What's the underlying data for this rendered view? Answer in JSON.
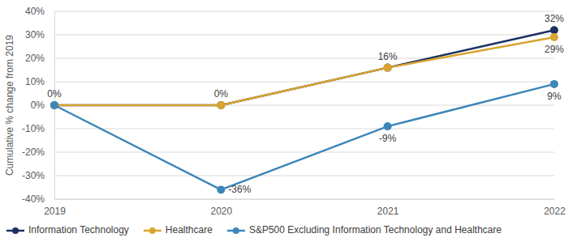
{
  "chart_data": {
    "type": "line",
    "ylabel": "Cumulative % change from 2019",
    "categories": [
      "2019",
      "2020",
      "2021",
      "2022"
    ],
    "series": [
      {
        "name": "Information Technology",
        "color": "#1c3160",
        "values": [
          0,
          0,
          16,
          32
        ],
        "value_labels": [
          null,
          null,
          null,
          "32%"
        ]
      },
      {
        "name": "Healthcare",
        "color": "#d9a530",
        "values": [
          0,
          0,
          16,
          29
        ],
        "value_labels": [
          "0%",
          "0%",
          "16%",
          "29%"
        ]
      },
      {
        "name": "S&P500 Excluding Information Technology and Healthcare",
        "color": "#3d86b9",
        "values": [
          0,
          -36,
          -9,
          9
        ],
        "value_labels": [
          null,
          "-36%",
          "-9%",
          "9%"
        ]
      }
    ],
    "ylim": [
      -40,
      40
    ],
    "yticks": [
      {
        "value": -40,
        "label": "-40%"
      },
      {
        "value": -30,
        "label": "-30%"
      },
      {
        "value": -20,
        "label": "-20%"
      },
      {
        "value": -10,
        "label": "-10%"
      },
      {
        "value": 0,
        "label": "0%"
      },
      {
        "value": 10,
        "label": "10%"
      },
      {
        "value": 20,
        "label": "20%"
      },
      {
        "value": 30,
        "label": "30%"
      },
      {
        "value": 40,
        "label": "40%"
      }
    ],
    "grid": true,
    "legend": "bottom",
    "marker": "circle",
    "data_labels": true
  }
}
